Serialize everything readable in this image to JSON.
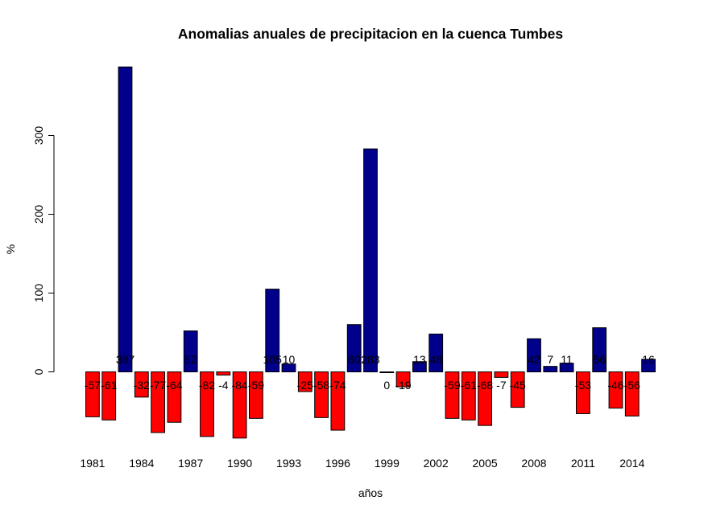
{
  "chart_data": {
    "type": "bar",
    "title": "Anomalias anuales de precipitacion en la cuenca Tumbes",
    "xlabel": "años",
    "ylabel": "%",
    "categories": [
      "1981",
      "1982",
      "1983",
      "1984",
      "1985",
      "1986",
      "1987",
      "1988",
      "1989",
      "1990",
      "1991",
      "1992",
      "1993",
      "1994",
      "1995",
      "1996",
      "1997",
      "1998",
      "1999",
      "2000",
      "2001",
      "2002",
      "2003",
      "2004",
      "2005",
      "2006",
      "2007",
      "2008",
      "2009",
      "2010",
      "2011",
      "2012",
      "2013",
      "2014",
      "2015"
    ],
    "x_tick_labels": [
      "1981",
      "",
      "",
      "1984",
      "",
      "",
      "1987",
      "",
      "",
      "1990",
      "",
      "",
      "1993",
      "",
      "",
      "1996",
      "",
      "",
      "1999",
      "",
      "",
      "2002",
      "",
      "",
      "2005",
      "",
      "",
      "2008",
      "",
      "",
      "2011",
      "",
      "",
      "2014",
      ""
    ],
    "values": [
      -57,
      -61,
      387,
      -32,
      -77,
      -64,
      52,
      -82,
      -4,
      -84,
      -59,
      105,
      10,
      -25,
      -58,
      -74,
      60,
      283,
      0,
      -19,
      13,
      48,
      -59,
      -61,
      -68,
      -7,
      -45,
      42,
      7,
      11,
      -53,
      56,
      -46,
      -56,
      16
    ],
    "bar_labels": [
      "-57",
      "-61",
      "387",
      "-32",
      "-77",
      "-64",
      "52",
      "-82",
      "-4",
      "-84",
      "-59",
      "105",
      "10",
      "-25",
      "-58",
      "-74",
      "60",
      "283",
      "0",
      "-19",
      "13",
      "48",
      "-59",
      "-61",
      "-68",
      "-7",
      "-45",
      "42",
      "7",
      "11",
      "-53",
      "56",
      "-46",
      "-56",
      "16"
    ],
    "y_ticks": [
      0,
      100,
      200,
      300
    ],
    "ylim": [
      -100,
      400
    ],
    "colors": {
      "positive": "#00008B",
      "negative": "#FF0000",
      "border": "#000000"
    },
    "grid": false,
    "legend": "none"
  }
}
